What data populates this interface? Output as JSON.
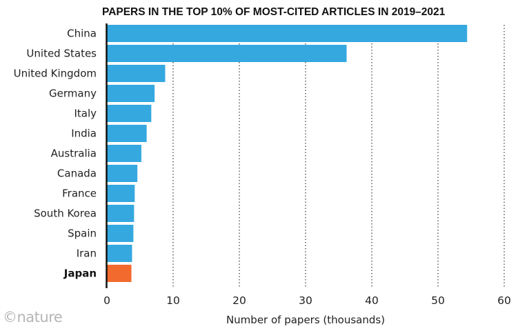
{
  "credit": "©nature",
  "chart_data": {
    "type": "bar",
    "orientation": "horizontal",
    "title": "PAPERS IN THE TOP 10% OF MOST-CITED ARTICLES IN 2019–2021",
    "xlabel": "Number of papers (thousands)",
    "ylabel": "",
    "xlim": [
      0,
      60
    ],
    "xticks": [
      "0",
      "10",
      "20",
      "30",
      "40",
      "50",
      "60"
    ],
    "grid": "vertical dotted",
    "categories": [
      "China",
      "United States",
      "United Kingdom",
      "Germany",
      "Italy",
      "India",
      "Australia",
      "Canada",
      "France",
      "South Korea",
      "Spain",
      "Iran",
      "Japan"
    ],
    "values": [
      54.4,
      36.2,
      8.8,
      7.2,
      6.7,
      6.0,
      5.2,
      4.6,
      4.2,
      4.1,
      4.0,
      3.8,
      3.7
    ],
    "highlight": "Japan",
    "colors": {
      "bar": "#35a8e0",
      "highlight": "#f26a2e",
      "axis": "#111111",
      "grid": "#333333"
    }
  }
}
